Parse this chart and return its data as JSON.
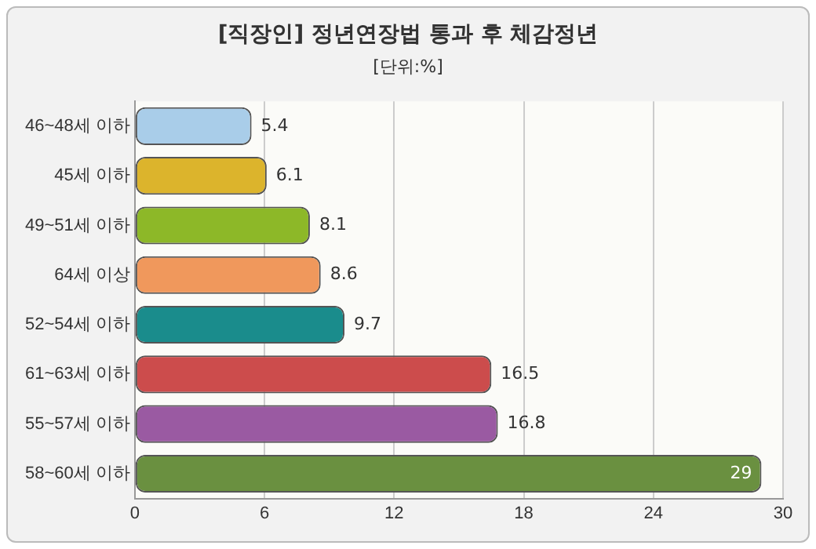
{
  "chart_data": {
    "type": "bar",
    "orientation": "horizontal",
    "title": "[직장인] 정년연장법 통과 후 체감정년",
    "subtitle": "[단위:%]",
    "categories": [
      "46~48세 이하",
      "45세 이하",
      "49~51세 이하",
      "64세 이상",
      "52~54세 이하",
      "61~63세 이하",
      "55~57세 이하",
      "58~60세 이하"
    ],
    "values": [
      5.4,
      6.1,
      8.1,
      8.6,
      9.7,
      16.5,
      16.8,
      29
    ],
    "colors": [
      "#a9cde9",
      "#dcb42c",
      "#8db828",
      "#f0985c",
      "#1a8c8c",
      "#cc4c4c",
      "#9a5aa2",
      "#6a9040"
    ],
    "xlim": [
      0,
      30
    ],
    "xticks": [
      0,
      6,
      12,
      18,
      24,
      30
    ],
    "grid": "x",
    "data_labels": true,
    "legend": false
  }
}
